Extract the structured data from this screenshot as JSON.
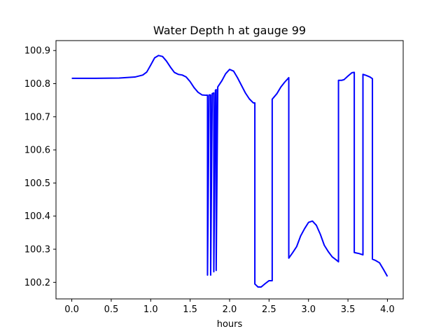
{
  "chart_data": {
    "type": "line",
    "title": "Water Depth h at gauge 99",
    "xlabel": "hours",
    "ylabel": "",
    "xlim": [
      -0.2,
      4.2
    ],
    "ylim": [
      100.15,
      100.93
    ],
    "xticks": [
      0.0,
      0.5,
      1.0,
      1.5,
      2.0,
      2.5,
      3.0,
      3.5,
      4.0
    ],
    "xtick_labels": [
      "0.0",
      "0.5",
      "1.0",
      "1.5",
      "2.0",
      "2.5",
      "3.0",
      "3.5",
      "4.0"
    ],
    "yticks": [
      100.2,
      100.3,
      100.4,
      100.5,
      100.6,
      100.7,
      100.8,
      100.9
    ],
    "ytick_labels": [
      "100.2",
      "100.3",
      "100.4",
      "100.5",
      "100.6",
      "100.7",
      "100.8",
      "100.9"
    ],
    "grid": false,
    "series": [
      {
        "color": "#0000ff",
        "x": [
          0.0,
          0.3,
          0.6,
          0.8,
          0.9,
          0.95,
          1.0,
          1.05,
          1.1,
          1.15,
          1.2,
          1.25,
          1.3,
          1.35,
          1.4,
          1.45,
          1.5,
          1.55,
          1.6,
          1.65,
          1.7,
          1.72,
          1.72,
          1.74,
          1.74,
          1.76,
          1.76,
          1.78,
          1.78,
          1.8,
          1.8,
          1.82,
          1.82,
          1.83,
          1.83,
          1.85,
          1.9,
          1.95,
          2.0,
          2.05,
          2.1,
          2.15,
          2.2,
          2.25,
          2.3,
          2.32,
          2.32,
          2.36,
          2.4,
          2.45,
          2.5,
          2.54,
          2.54,
          2.6,
          2.65,
          2.7,
          2.75,
          2.75,
          2.8,
          2.85,
          2.9,
          2.95,
          3.0,
          3.05,
          3.1,
          3.15,
          3.2,
          3.25,
          3.3,
          3.35,
          3.38,
          3.38,
          3.42,
          3.45,
          3.5,
          3.55,
          3.58,
          3.58,
          3.64,
          3.69,
          3.69,
          3.73,
          3.78,
          3.81,
          3.81,
          3.85,
          3.9,
          3.95,
          4.0
        ],
        "y": [
          100.816,
          100.816,
          100.817,
          100.82,
          100.826,
          100.835,
          100.856,
          100.878,
          100.885,
          100.882,
          100.868,
          100.85,
          100.834,
          100.828,
          100.826,
          100.82,
          100.806,
          100.788,
          100.774,
          100.766,
          100.765,
          100.765,
          100.222,
          100.764,
          100.766,
          100.766,
          100.222,
          100.768,
          100.77,
          100.772,
          100.232,
          100.775,
          100.78,
          100.782,
          100.236,
          100.79,
          100.808,
          100.83,
          100.843,
          100.838,
          100.818,
          100.795,
          100.772,
          100.754,
          100.742,
          100.742,
          100.195,
          100.186,
          100.186,
          100.196,
          100.205,
          100.205,
          100.753,
          100.77,
          100.79,
          100.805,
          100.818,
          100.273,
          100.29,
          100.308,
          100.34,
          100.362,
          100.381,
          100.385,
          100.372,
          100.345,
          100.312,
          100.293,
          100.277,
          100.268,
          100.262,
          100.81,
          100.81,
          100.812,
          100.823,
          100.833,
          100.834,
          100.29,
          100.287,
          100.283,
          100.828,
          100.825,
          100.82,
          100.815,
          100.27,
          100.266,
          100.259,
          100.239,
          100.218
        ]
      }
    ]
  }
}
